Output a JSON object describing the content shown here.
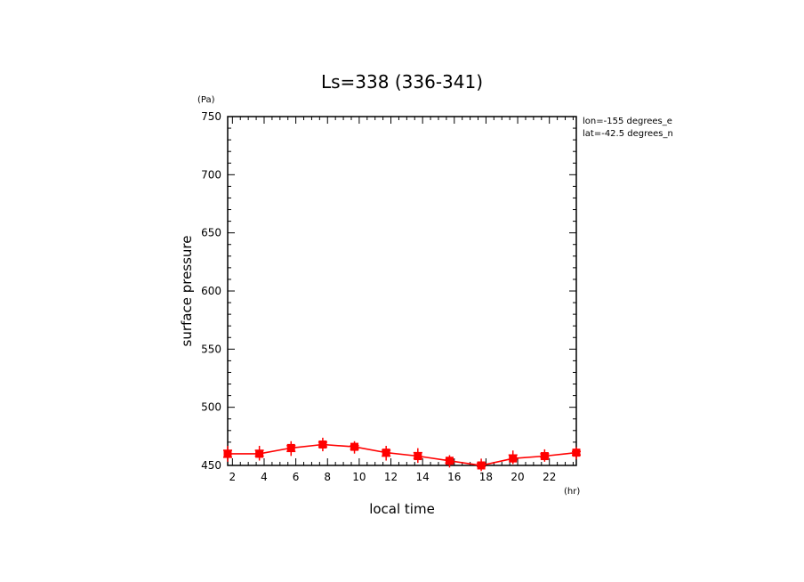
{
  "chart_data": {
    "type": "line",
    "title": "Ls=338 (336-341)",
    "xlabel": "local time",
    "ylabel": "surface pressure",
    "x_unit": "(hr)",
    "y_unit": "(Pa)",
    "xlim": [
      1.7,
      23.7
    ],
    "ylim": [
      450,
      750
    ],
    "x_ticks": [
      2,
      4,
      6,
      8,
      10,
      12,
      14,
      16,
      18,
      20,
      22
    ],
    "y_ticks": [
      450,
      500,
      550,
      600,
      650,
      700,
      750
    ],
    "grid": false,
    "legend": "none",
    "annotations": [
      "lon=-155 degrees_e",
      "lat=-42.5 degrees_n"
    ],
    "line_color": "#ff0000",
    "series": [
      {
        "x": [
          1.7,
          3.7,
          5.7,
          7.7,
          9.7,
          11.7,
          13.7,
          15.7,
          17.7,
          19.7,
          21.7,
          23.7
        ],
        "values": [
          460,
          460,
          465,
          468,
          466,
          461,
          458,
          454,
          450,
          456,
          458,
          461
        ]
      }
    ],
    "scatter_points": [
      {
        "x": 1.7,
        "y": 463
      },
      {
        "x": 1.7,
        "y": 457
      },
      {
        "x": 3.7,
        "y": 463
      },
      {
        "x": 3.7,
        "y": 458
      },
      {
        "x": 5.7,
        "y": 467
      },
      {
        "x": 5.7,
        "y": 462
      },
      {
        "x": 7.7,
        "y": 470
      },
      {
        "x": 7.7,
        "y": 466
      },
      {
        "x": 9.7,
        "y": 467
      },
      {
        "x": 9.7,
        "y": 464
      },
      {
        "x": 11.7,
        "y": 463
      },
      {
        "x": 11.7,
        "y": 458
      },
      {
        "x": 13.7,
        "y": 461
      },
      {
        "x": 13.7,
        "y": 456
      },
      {
        "x": 15.7,
        "y": 455
      },
      {
        "x": 15.7,
        "y": 452
      },
      {
        "x": 17.7,
        "y": 452
      },
      {
        "x": 17.7,
        "y": 449
      },
      {
        "x": 19.7,
        "y": 459
      },
      {
        "x": 19.7,
        "y": 455
      },
      {
        "x": 21.7,
        "y": 460
      },
      {
        "x": 21.7,
        "y": 457
      },
      {
        "x": 23.7,
        "y": 462
      },
      {
        "x": 23.7,
        "y": 459
      }
    ]
  }
}
